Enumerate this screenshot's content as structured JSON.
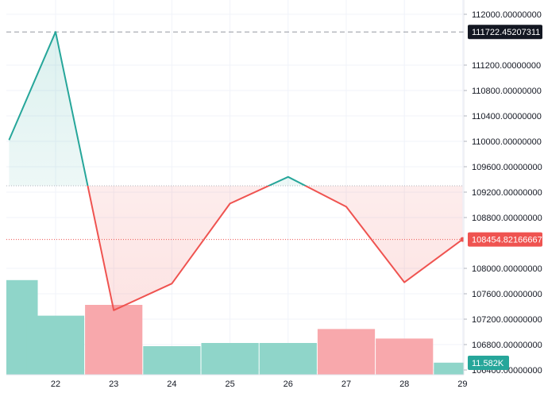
{
  "chart_data": {
    "type": "area",
    "baseline": 109300,
    "y_ticks": [
      "112000.00000000",
      "111200.00000000",
      "110800.00000000",
      "110400.00000000",
      "110000.00000000",
      "109600.00000000",
      "109200.00000000",
      "108800.00000000",
      "108000.00000000",
      "107600.00000000",
      "107200.00000000",
      "106800.00000000",
      "106400.00000000"
    ],
    "x_ticks": [
      "22",
      "23",
      "24",
      "25",
      "26",
      "27",
      "28",
      "29"
    ],
    "series": [
      {
        "points": [
          {
            "x": 21.2,
            "y": 110020
          },
          {
            "x": 22.0,
            "y": 111722
          },
          {
            "x": 23.0,
            "y": 107340
          },
          {
            "x": 24.0,
            "y": 107760
          },
          {
            "x": 25.0,
            "y": 109020
          },
          {
            "x": 26.0,
            "y": 109440
          },
          {
            "x": 27.0,
            "y": 108970
          },
          {
            "x": 28.0,
            "y": 107780
          },
          {
            "x": 29.0,
            "y": 108454.82
          }
        ]
      }
    ],
    "volume": [
      {
        "x": 21.2,
        "v": 14.9,
        "color": "up"
      },
      {
        "x": 22.0,
        "v": 9.3,
        "color": "up"
      },
      {
        "x": 23.0,
        "v": 11.0,
        "color": "down"
      },
      {
        "x": 24.0,
        "v": 4.5,
        "color": "up"
      },
      {
        "x": 25.0,
        "v": 5.0,
        "color": "up"
      },
      {
        "x": 26.0,
        "v": 5.0,
        "color": "up"
      },
      {
        "x": 27.0,
        "v": 7.2,
        "color": "down"
      },
      {
        "x": 28.0,
        "v": 5.7,
        "color": "down"
      },
      {
        "x": 29.0,
        "v": 1.9,
        "color": "up"
      }
    ],
    "ylim": [
      106400,
      112000
    ],
    "grid": true,
    "high_line_label": "111722.45207311",
    "last_price_label": "108454.82166667",
    "volume_label": "11.582K",
    "colors": {
      "up": "#26a69a",
      "down": "#ef5350",
      "up_fill": "#26a69a",
      "down_fill": "#ef5350",
      "vol_up": "#8fd5c9",
      "vol_down": "#f8a8ac",
      "grid": "#f0f3fa",
      "text": "#131722",
      "high_tag": "#131722",
      "price_tag": "#ef5350",
      "vol_tag": "#26a69a"
    }
  }
}
